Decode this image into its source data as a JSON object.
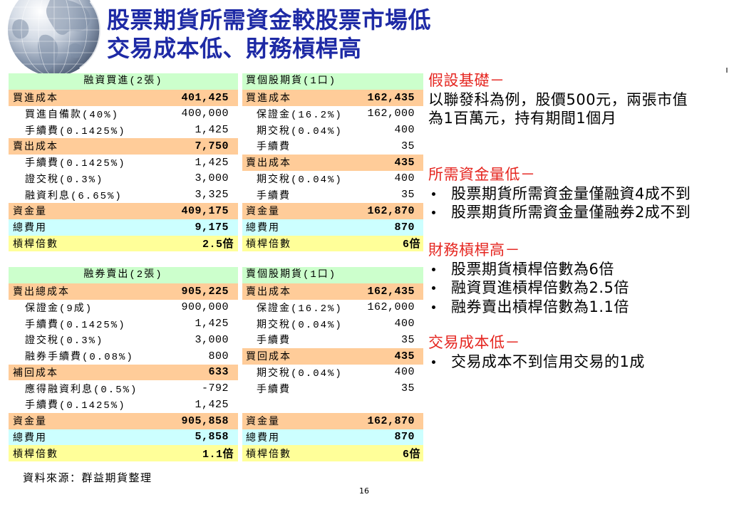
{
  "slide": {
    "logo_icon": "globe-icon",
    "title_lines": [
      "股票期貨所需資金較股票市場低",
      "交易成本低、財務槓桿高"
    ],
    "source": "資料來源：群益期貨整理",
    "page_number": "16"
  },
  "colors": {
    "title": "#1e2aa5",
    "heading": "#e52620",
    "header": "#ccffcc",
    "summary": "#ffcc99",
    "total_fee": "#ccffff",
    "leverage": "#ffff99",
    "detail": "#ffffff"
  },
  "tables": [
    {
      "header": "融資買進(2張)",
      "rows": [
        {
          "label": "買進成本",
          "value": "401,425",
          "fill": "#ffcc99"
        },
        {
          "label": "買進自備款(40%)",
          "value": "400,000",
          "fill": "#ffffff"
        },
        {
          "label": "手續費(0.1425%)",
          "value": "1,425",
          "fill": "#ffffff"
        },
        {
          "label": "賣出成本",
          "value": "7,750",
          "fill": "#ffcc99"
        },
        {
          "label": "手續費(0.1425%)",
          "value": "1,425",
          "fill": "#ffffff"
        },
        {
          "label": "證交稅(0.3%)",
          "value": "3,000",
          "fill": "#ffffff"
        },
        {
          "label": "融資利息(6.65%)",
          "value": "3,325",
          "fill": "#ffffff"
        },
        {
          "label": "資金量",
          "value": "409,175",
          "fill": "#ffcc99"
        },
        {
          "label": "總費用",
          "value": "9,175",
          "fill": "#ccffff"
        },
        {
          "label": "槓桿倍數",
          "value": "2.5倍",
          "fill": "#ffff99"
        }
      ]
    },
    {
      "header": "買個股期貨(1口)",
      "rows": [
        {
          "label": "買進成本",
          "value": "162,435",
          "fill": "#ffcc99"
        },
        {
          "label": "保證金(16.2%)",
          "value": "162,000",
          "fill": "#ffffff"
        },
        {
          "label": "期交稅(0.04%)",
          "value": "400",
          "fill": "#ffffff"
        },
        {
          "label": "手續費",
          "value": "35",
          "fill": "#ffffff"
        },
        {
          "label": "賣出成本",
          "value": "435",
          "fill": "#ffcc99"
        },
        {
          "label": "期交稅(0.04%)",
          "value": "400",
          "fill": "#ffffff"
        },
        {
          "label": "手續費",
          "value": "35",
          "fill": "#ffffff"
        },
        {
          "label": "資金量",
          "value": "162,870",
          "fill": "#ffcc99"
        },
        {
          "label": "總費用",
          "value": "870",
          "fill": "#ccffff"
        },
        {
          "label": "槓桿倍數",
          "value": "6倍",
          "fill": "#ffff99"
        }
      ]
    },
    {
      "header": "融券賣出(2張)",
      "rows": [
        {
          "label": "賣出總成本",
          "value": "905,225",
          "fill": "#ffcc99"
        },
        {
          "label": "保證金(9成)",
          "value": "900,000",
          "fill": "#ffffff"
        },
        {
          "label": "手續費(0.1425%)",
          "value": "1,425",
          "fill": "#ffffff"
        },
        {
          "label": "證交稅(0.3%)",
          "value": "3,000",
          "fill": "#ffffff"
        },
        {
          "label": "融券手續費(0.08%)",
          "value": "800",
          "fill": "#ffffff"
        },
        {
          "label": "補回成本",
          "value": "633",
          "fill": "#ffcc99"
        },
        {
          "label": "應得融資利息(0.5%)",
          "value": "-792",
          "fill": "#ffffff"
        },
        {
          "label": "手續費(0.1425%)",
          "value": "1,425",
          "fill": "#ffffff"
        },
        {
          "label": "資金量",
          "value": "905,858",
          "fill": "#ffcc99"
        },
        {
          "label": "總費用",
          "value": "5,858",
          "fill": "#ccffff"
        },
        {
          "label": "槓桿倍數",
          "value": "1.1倍",
          "fill": "#ffff99"
        }
      ]
    },
    {
      "header": "賣個股期貨(1口)",
      "rows": [
        {
          "label": "賣出成本",
          "value": "162,435",
          "fill": "#ffcc99"
        },
        {
          "label": "保證金(16.2%)",
          "value": "162,000",
          "fill": "#ffffff"
        },
        {
          "label": "期交稅(0.04%)",
          "value": "400",
          "fill": "#ffffff"
        },
        {
          "label": "手續費",
          "value": "35",
          "fill": "#ffffff"
        },
        {
          "label": "買回成本",
          "value": "435",
          "fill": "#ffcc99"
        },
        {
          "label": "期交稅(0.04%)",
          "value": "400",
          "fill": "#ffffff"
        },
        {
          "label": "手續費",
          "value": "35",
          "fill": "#ffffff"
        },
        {
          "label": "",
          "value": "",
          "fill": "#ffffff"
        },
        {
          "label": "資金量",
          "value": "162,870",
          "fill": "#ffcc99"
        },
        {
          "label": "總費用",
          "value": "870",
          "fill": "#ccffff"
        },
        {
          "label": "槓桿倍數",
          "value": "6倍",
          "fill": "#ffff99"
        }
      ]
    }
  ],
  "notes": [
    {
      "heading": "假設基礎－",
      "lines": [
        "以聯發科為例，股價500元，兩張市值",
        "為1百萬元，持有期間1個月"
      ]
    },
    {
      "heading": "所需資金量低－",
      "bullets": [
        "股票期貨所需資金量僅融資4成不到",
        "股票期貨所需資金量僅融券2成不到"
      ]
    },
    {
      "heading": "財務槓桿高－",
      "bullets": [
        "股票期貨槓桿倍數為6倍",
        "融資買進槓桿倍數為2.5倍",
        "融券賣出槓桿倍數為1.1倍"
      ]
    },
    {
      "heading": "交易成本低－",
      "bullets": [
        "交易成本不到信用交易的1成"
      ]
    }
  ]
}
